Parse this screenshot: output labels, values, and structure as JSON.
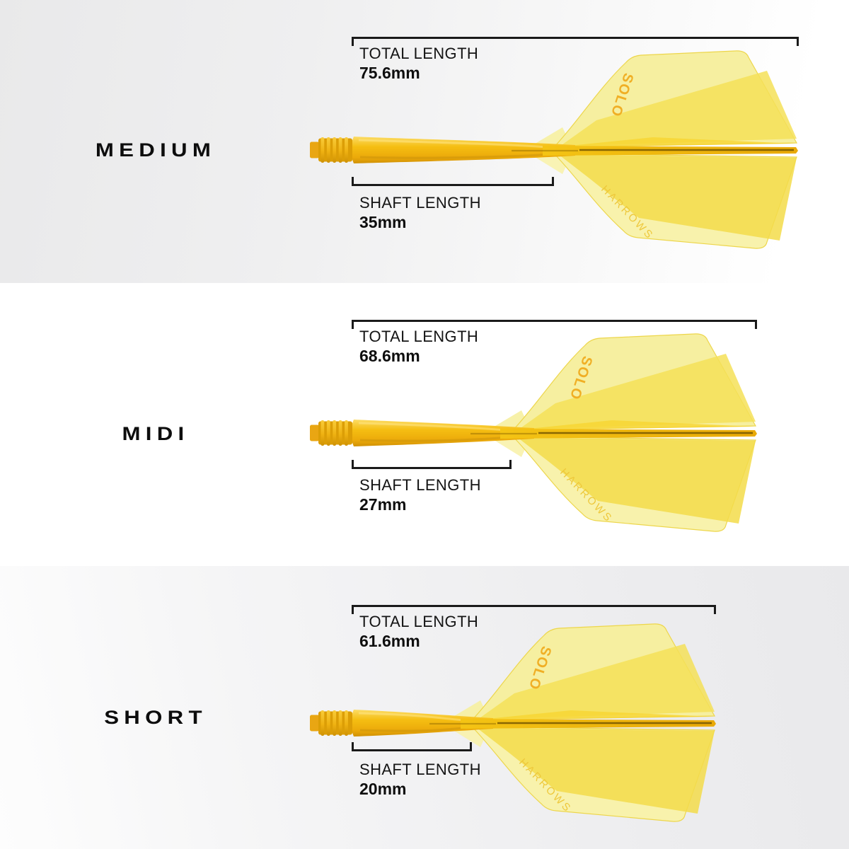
{
  "sections": [
    {
      "label": "MEDIUM",
      "total": {
        "label": "TOTAL LENGTH",
        "value": "75.6mm"
      },
      "shaft": {
        "label": "SHAFT LENGTH",
        "value": "35mm"
      }
    },
    {
      "label": "MIDI",
      "total": {
        "label": "TOTAL LENGTH",
        "value": "68.6mm"
      },
      "shaft": {
        "label": "SHAFT LENGTH",
        "value": "27mm"
      }
    },
    {
      "label": "SHORT",
      "total": {
        "label": "TOTAL LENGTH",
        "value": "61.6mm"
      },
      "shaft": {
        "label": "SHAFT LENGTH",
        "value": "20mm"
      }
    }
  ],
  "dart": {
    "flight_logo_primary": "SOLO",
    "flight_logo_secondary": "HARROWS"
  },
  "colors": {
    "bracket": "#1A1A1A",
    "label_text": "#141414",
    "shaft_top": "#FCDC66",
    "shaft_mid": "#F5BE12",
    "shaft_bottom": "#D09105",
    "thread_base": "#DC9E06",
    "thread_rib": "#F9CC3A",
    "flight_pale_top": "#F6EFA0",
    "flight_pale_bottom": "#F8F2AC",
    "flight_mid_top": "#F4E058",
    "flight_mid_bottom": "#F3DC4A",
    "flight_bright": "#F7D531",
    "spine_light": "#F4C414",
    "spine_dark": "#E9A907",
    "spine_groove": "#6B4F00",
    "logo_solo": "#F0AF25",
    "logo_harrows": "#EEC83B"
  }
}
